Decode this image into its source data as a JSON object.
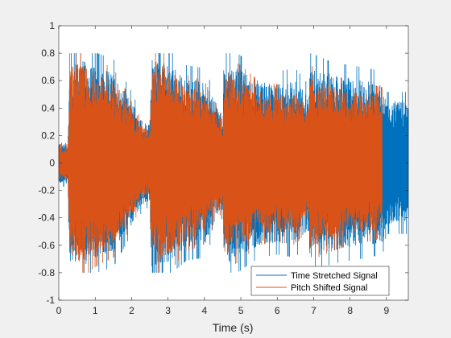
{
  "colors": {
    "background": "#f0f0f0",
    "axes_bg": "#ffffff",
    "axis": "#262626",
    "series1": "#0072BD",
    "series2": "#D95319"
  },
  "chart_data": {
    "type": "line",
    "title": "",
    "xlabel": "Time (s)",
    "ylabel": "",
    "xlim": [
      0,
      9.6
    ],
    "ylim": [
      -1,
      1
    ],
    "xticks": [
      0,
      1,
      2,
      3,
      4,
      5,
      6,
      7,
      8,
      9
    ],
    "yticks": [
      -1,
      -0.8,
      -0.6,
      -0.4,
      -0.2,
      0,
      0.2,
      0.4,
      0.6,
      0.8,
      1
    ],
    "xtick_labels": [
      "0",
      "1",
      "2",
      "3",
      "4",
      "5",
      "6",
      "7",
      "8",
      "9"
    ],
    "ytick_labels": [
      "-1",
      "-0.8",
      "-0.6",
      "-0.4",
      "-0.2",
      "0",
      "0.2",
      "0.4",
      "0.6",
      "0.8",
      "1"
    ],
    "grid": false,
    "legend_location": "bottom-right",
    "series": [
      {
        "name": "Time Stretched Signal",
        "color": "#0072BD",
        "x": [
          0,
          0.25,
          0.3,
          0.6,
          1.0,
          1.5,
          2.0,
          2.3,
          2.5,
          2.55,
          3.0,
          3.5,
          4.0,
          4.5,
          4.55,
          5.0,
          5.5,
          6.0,
          6.5,
          6.85,
          6.9,
          7.5,
          8.0,
          8.5,
          8.9,
          9.0,
          9.6
        ],
        "envelope": [
          0.15,
          0.15,
          0.72,
          0.76,
          0.7,
          0.66,
          0.45,
          0.3,
          0.28,
          0.78,
          0.72,
          0.62,
          0.6,
          0.34,
          0.75,
          0.68,
          0.6,
          0.58,
          0.6,
          0.5,
          0.7,
          0.64,
          0.62,
          0.6,
          0.58,
          0.45,
          0.45
        ]
      },
      {
        "name": "Pitch Shifted Signal",
        "color": "#D95319",
        "x": [
          0,
          0.25,
          0.3,
          0.6,
          1.0,
          1.5,
          2.0,
          2.3,
          2.5,
          2.55,
          3.0,
          3.5,
          4.0,
          4.5,
          4.55,
          5.0,
          5.5,
          6.0,
          6.5,
          6.85,
          6.9,
          7.5,
          8.0,
          8.5,
          8.88
        ],
        "envelope": [
          0.12,
          0.12,
          0.7,
          0.74,
          0.66,
          0.6,
          0.4,
          0.26,
          0.24,
          0.76,
          0.7,
          0.56,
          0.52,
          0.3,
          0.68,
          0.62,
          0.52,
          0.5,
          0.52,
          0.42,
          0.62,
          0.56,
          0.52,
          0.5,
          0.48
        ]
      }
    ]
  }
}
